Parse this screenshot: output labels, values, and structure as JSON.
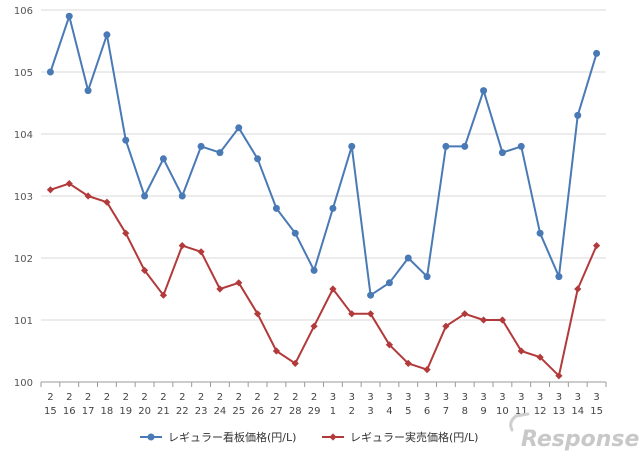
{
  "chart_data": {
    "type": "line",
    "categories_month": [
      "2",
      "2",
      "2",
      "2",
      "2",
      "2",
      "2",
      "2",
      "2",
      "2",
      "2",
      "2",
      "2",
      "2",
      "2",
      "3",
      "3",
      "3",
      "3",
      "3",
      "3",
      "3",
      "3",
      "3",
      "3",
      "3",
      "3",
      "3",
      "3",
      "3"
    ],
    "categories_day": [
      "15",
      "16",
      "17",
      "18",
      "19",
      "20",
      "21",
      "22",
      "23",
      "24",
      "25",
      "26",
      "27",
      "28",
      "29",
      "1",
      "2",
      "3",
      "4",
      "5",
      "6",
      "7",
      "8",
      "9",
      "10",
      "11",
      "12",
      "13",
      "14",
      "15"
    ],
    "ylim": [
      100,
      106
    ],
    "yticks": [
      "100",
      "101",
      "102",
      "103",
      "104",
      "105",
      "106"
    ],
    "grid": true,
    "legend_position": "bottom",
    "series": [
      {
        "name": "レギュラー看板価格(円/L)",
        "color": "#4a7ab5",
        "marker": "circle",
        "values": [
          105.0,
          105.9,
          104.7,
          105.6,
          103.9,
          103.0,
          103.6,
          103.0,
          103.8,
          103.7,
          104.1,
          103.6,
          102.8,
          102.4,
          101.8,
          102.8,
          103.8,
          101.4,
          101.6,
          102.0,
          101.7,
          103.8,
          103.8,
          104.7,
          103.7,
          103.8,
          102.4,
          101.7,
          104.3,
          105.3
        ]
      },
      {
        "name": "レギュラー実売価格(円/L)",
        "color": "#b23a3a",
        "marker": "diamond",
        "values": [
          103.1,
          103.2,
          103.0,
          102.9,
          102.4,
          101.8,
          101.4,
          102.2,
          102.1,
          101.5,
          101.6,
          101.1,
          100.5,
          100.3,
          100.9,
          101.5,
          101.1,
          101.1,
          100.6,
          100.3,
          100.2,
          100.9,
          101.1,
          101.0,
          101.0,
          100.5,
          100.4,
          100.1,
          101.5,
          102.2
        ]
      }
    ]
  },
  "watermark": {
    "text": "Response."
  }
}
